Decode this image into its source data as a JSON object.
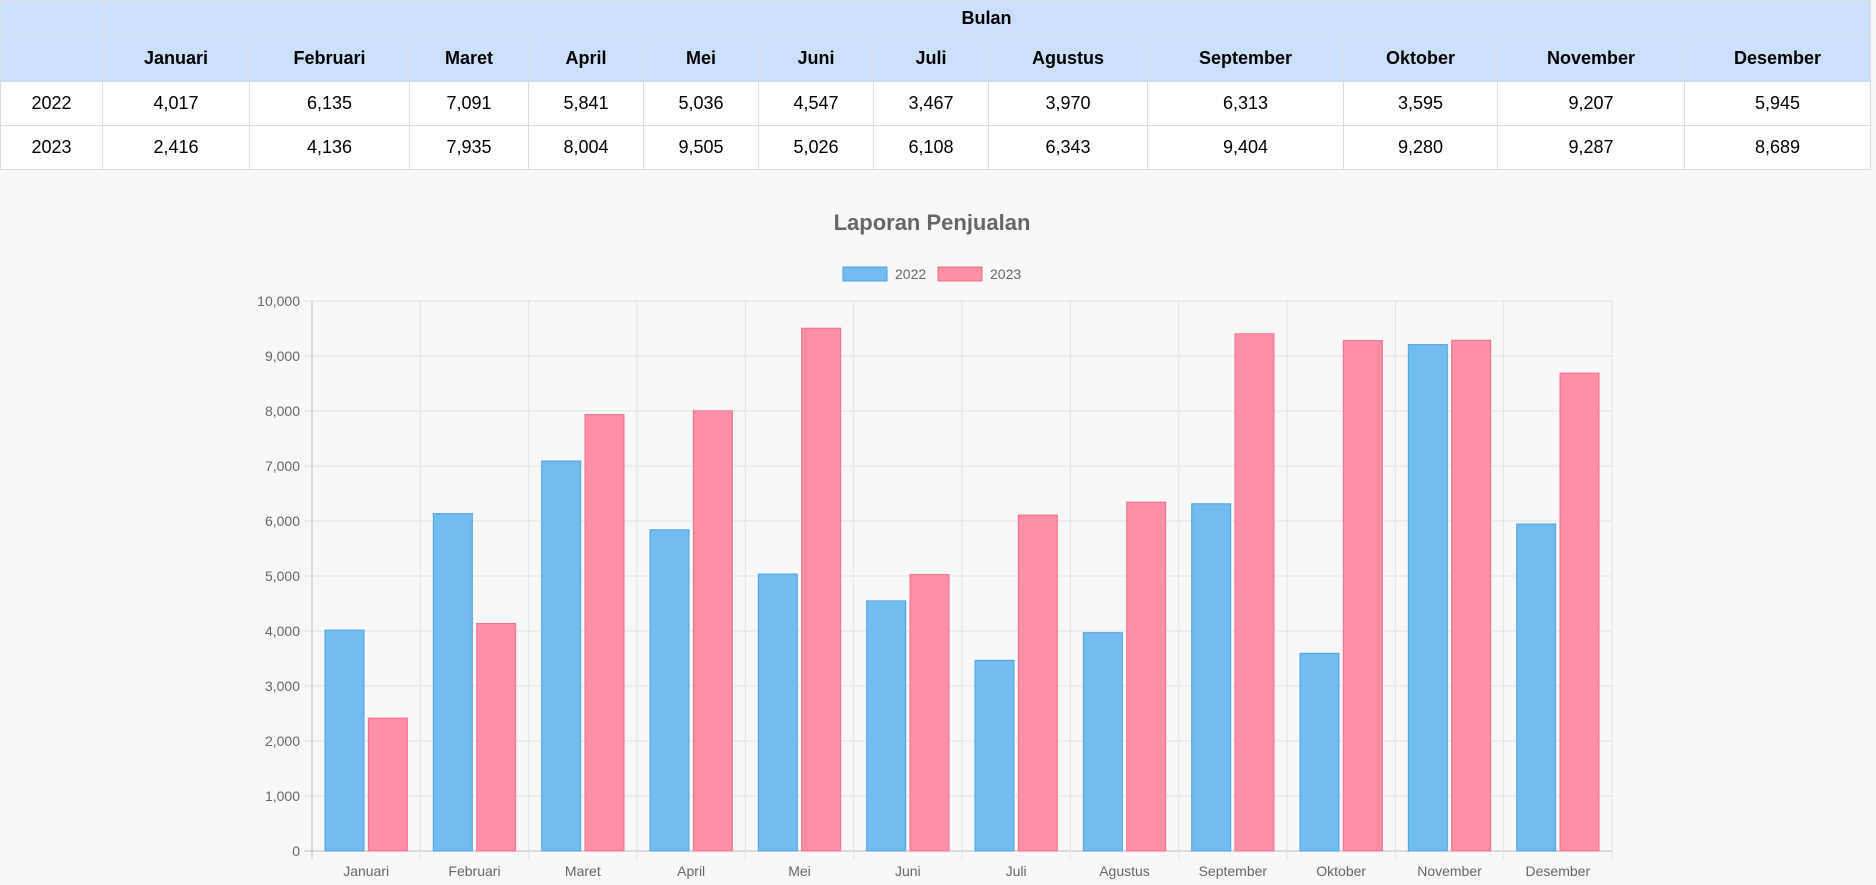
{
  "table": {
    "group_header": "Bulan",
    "corner": "",
    "months": [
      "Januari",
      "Februari",
      "Maret",
      "April",
      "Mei",
      "Juni",
      "Juli",
      "Agustus",
      "September",
      "Oktober",
      "November",
      "Desember"
    ],
    "rows": [
      {
        "year": "2022",
        "values": [
          "4,017",
          "6,135",
          "7,091",
          "5,841",
          "5,036",
          "4,547",
          "3,467",
          "3,970",
          "6,313",
          "3,595",
          "9,207",
          "5,945"
        ]
      },
      {
        "year": "2023",
        "values": [
          "2,416",
          "4,136",
          "7,935",
          "8,004",
          "9,505",
          "5,026",
          "6,108",
          "6,343",
          "9,404",
          "9,280",
          "9,287",
          "8,689"
        ]
      }
    ]
  },
  "chart_data": {
    "type": "bar",
    "title": "Laporan Penjualan",
    "categories": [
      "Januari",
      "Februari",
      "Maret",
      "April",
      "Mei",
      "Juni",
      "Juli",
      "Agustus",
      "September",
      "Oktober",
      "November",
      "Desember"
    ],
    "series": [
      {
        "name": "2022",
        "values": [
          4017,
          6135,
          7091,
          5841,
          5036,
          4547,
          3467,
          3970,
          6313,
          3595,
          9207,
          5945
        ],
        "fill": "#72bcef",
        "stroke": "#4fa2e0"
      },
      {
        "name": "2023",
        "values": [
          2416,
          4136,
          7935,
          8004,
          9505,
          5026,
          6108,
          6343,
          9404,
          9280,
          9287,
          8689
        ],
        "fill": "#fd8fa7",
        "stroke": "#f56d8c"
      }
    ],
    "ylim": [
      0,
      10000
    ],
    "yticks": [
      "0",
      "1,000",
      "2,000",
      "3,000",
      "4,000",
      "5,000",
      "6,000",
      "7,000",
      "8,000",
      "9,000",
      "10,000"
    ],
    "xlabel": "",
    "ylabel": "",
    "grid": true,
    "legend_position": "top-center"
  }
}
